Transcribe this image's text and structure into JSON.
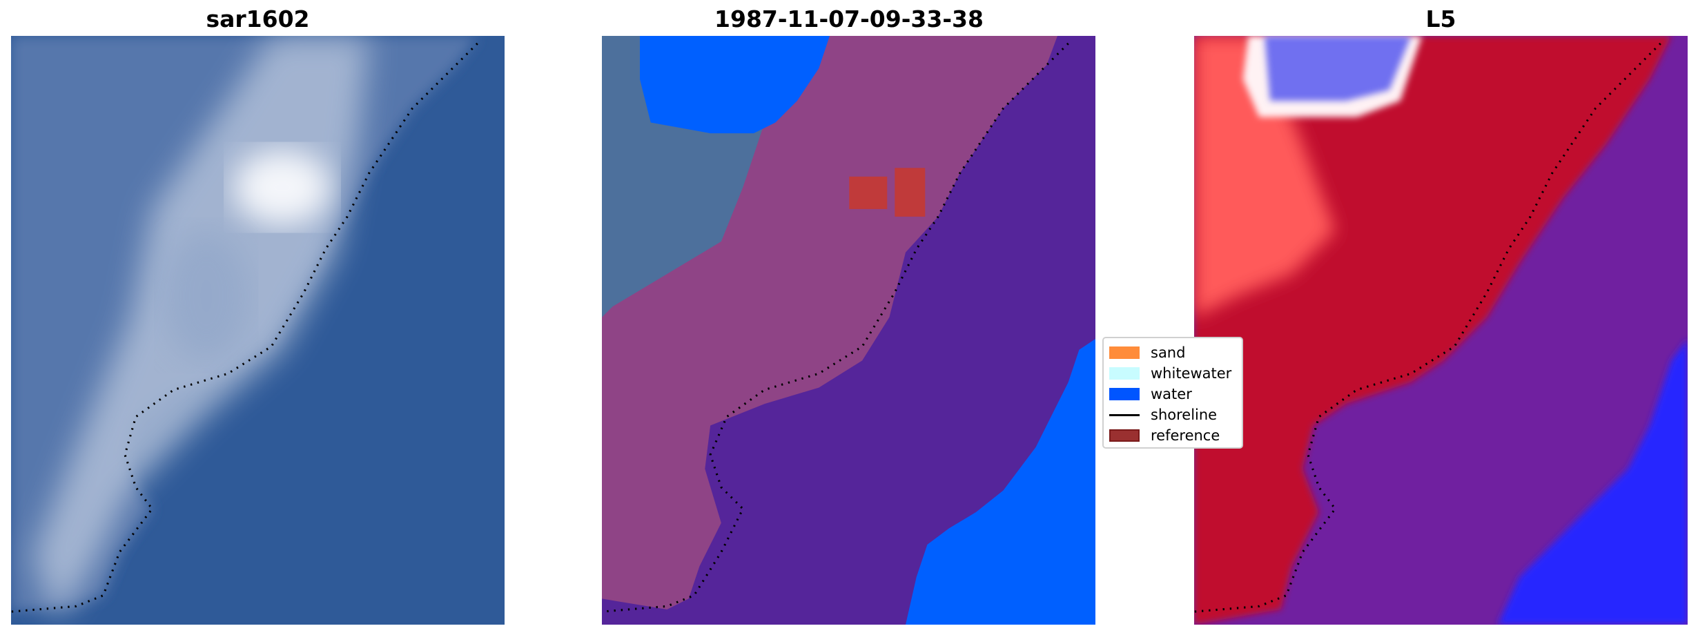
{
  "panels": [
    {
      "title": "sar1602"
    },
    {
      "title": "1987-11-07-09-33-38"
    },
    {
      "title": "L5"
    }
  ],
  "legend": {
    "items": [
      {
        "label": "sand",
        "type": "patch",
        "color": "#ff8c3a"
      },
      {
        "label": "whitewater",
        "type": "patch",
        "color": "#c8fcff"
      },
      {
        "label": "water",
        "type": "patch",
        "color": "#0055ff"
      },
      {
        "label": "shoreline",
        "type": "line",
        "color": "#000000"
      },
      {
        "label": "reference",
        "type": "patch",
        "color": "#9a3030"
      }
    ]
  },
  "colors": {
    "sand_overlay": "#9a4a8a",
    "water": "#0060ff",
    "sea": "#55259a",
    "reference": "#c03a3a",
    "l5_red": "#c0082e",
    "l5_purple": "#7020a0",
    "l5_blue": "#2525ff"
  }
}
